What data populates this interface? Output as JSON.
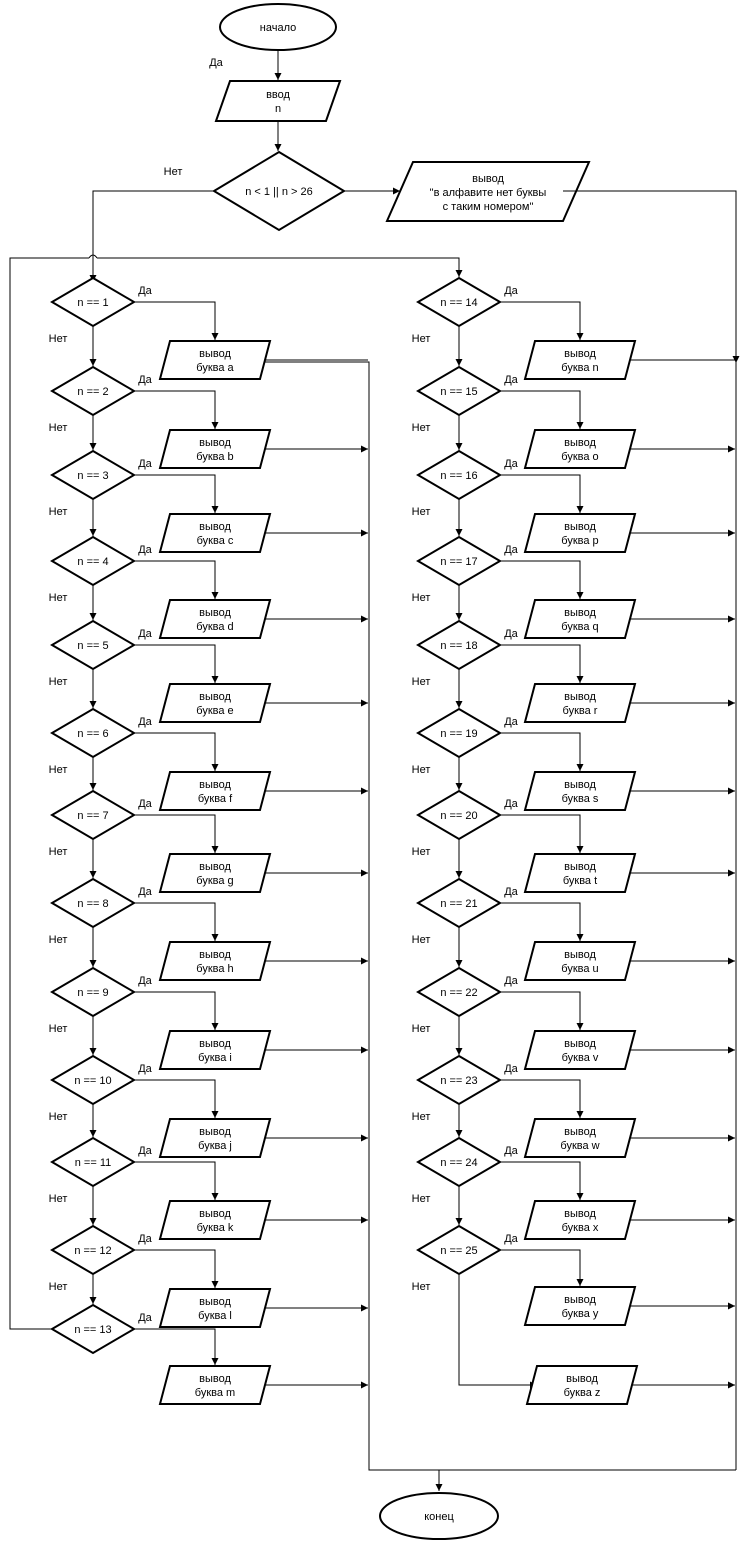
{
  "start": "начало",
  "end": "конец",
  "input": {
    "line1": "ввод",
    "line2": "n"
  },
  "range_check": "n < 1 || n > 26",
  "error_output": {
    "line1": "вывод",
    "line2": "\"в алфавите нет буквы",
    "line3": "с таким номером\""
  },
  "yes_label": "Да",
  "no_label": "Нет",
  "output_word": "вывод",
  "conditions_left": [
    "n == 1",
    "n == 2",
    "n == 3",
    "n == 4",
    "n == 5",
    "n == 6",
    "n == 7",
    "n == 8",
    "n == 9",
    "n == 10",
    "n == 11",
    "n == 12",
    "n == 13"
  ],
  "conditions_right": [
    "n == 14",
    "n == 15",
    "n == 16",
    "n == 17",
    "n == 18",
    "n == 19",
    "n == 20",
    "n == 21",
    "n == 22",
    "n == 23",
    "n == 24",
    "n == 25"
  ],
  "outputs_left": [
    "буква a",
    "буква b",
    "буква c",
    "буква d",
    "буква e",
    "буква f",
    "буква g",
    "буква h",
    "буква i",
    "буква j",
    "буква k",
    "буква l",
    "буква m"
  ],
  "outputs_right": [
    "буква n",
    "буква o",
    "буква p",
    "буква q",
    "буква r",
    "буква s",
    "буква t",
    "буква u",
    "буква v",
    "буква w",
    "буква x",
    "буква y",
    "буква z"
  ]
}
